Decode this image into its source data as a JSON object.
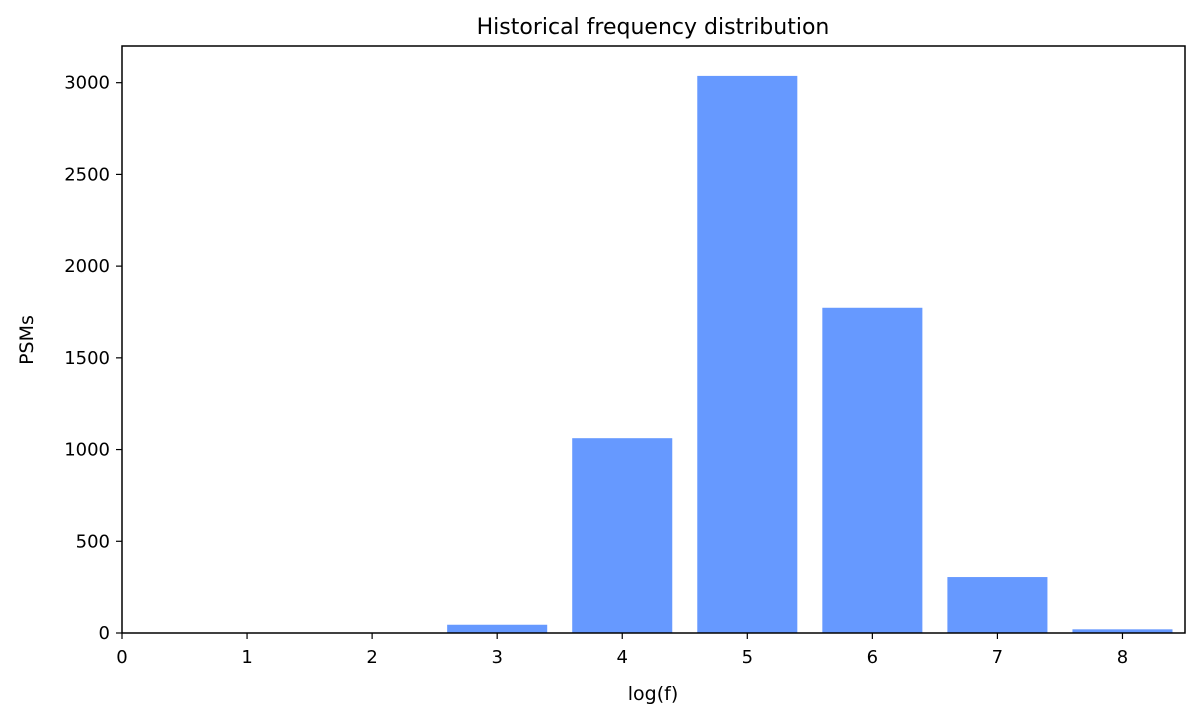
{
  "chart_data": {
    "type": "bar",
    "title": "Historical frequency distribution",
    "xlabel": "log(f)",
    "ylabel": "PSMs",
    "x": [
      1,
      2,
      3,
      4,
      5,
      6,
      7,
      8
    ],
    "values": [
      2,
      2,
      45,
      1062,
      3037,
      1773,
      305,
      20
    ],
    "xlim": [
      0,
      8.5
    ],
    "ylim": [
      0,
      3200
    ],
    "xticks": [
      "0",
      "1",
      "2",
      "3",
      "4",
      "5",
      "6",
      "7",
      "8"
    ],
    "yticks": [
      "0",
      "500",
      "1000",
      "1500",
      "2000",
      "2500",
      "3000"
    ],
    "bar_color": "#6699ff",
    "grid": false
  }
}
